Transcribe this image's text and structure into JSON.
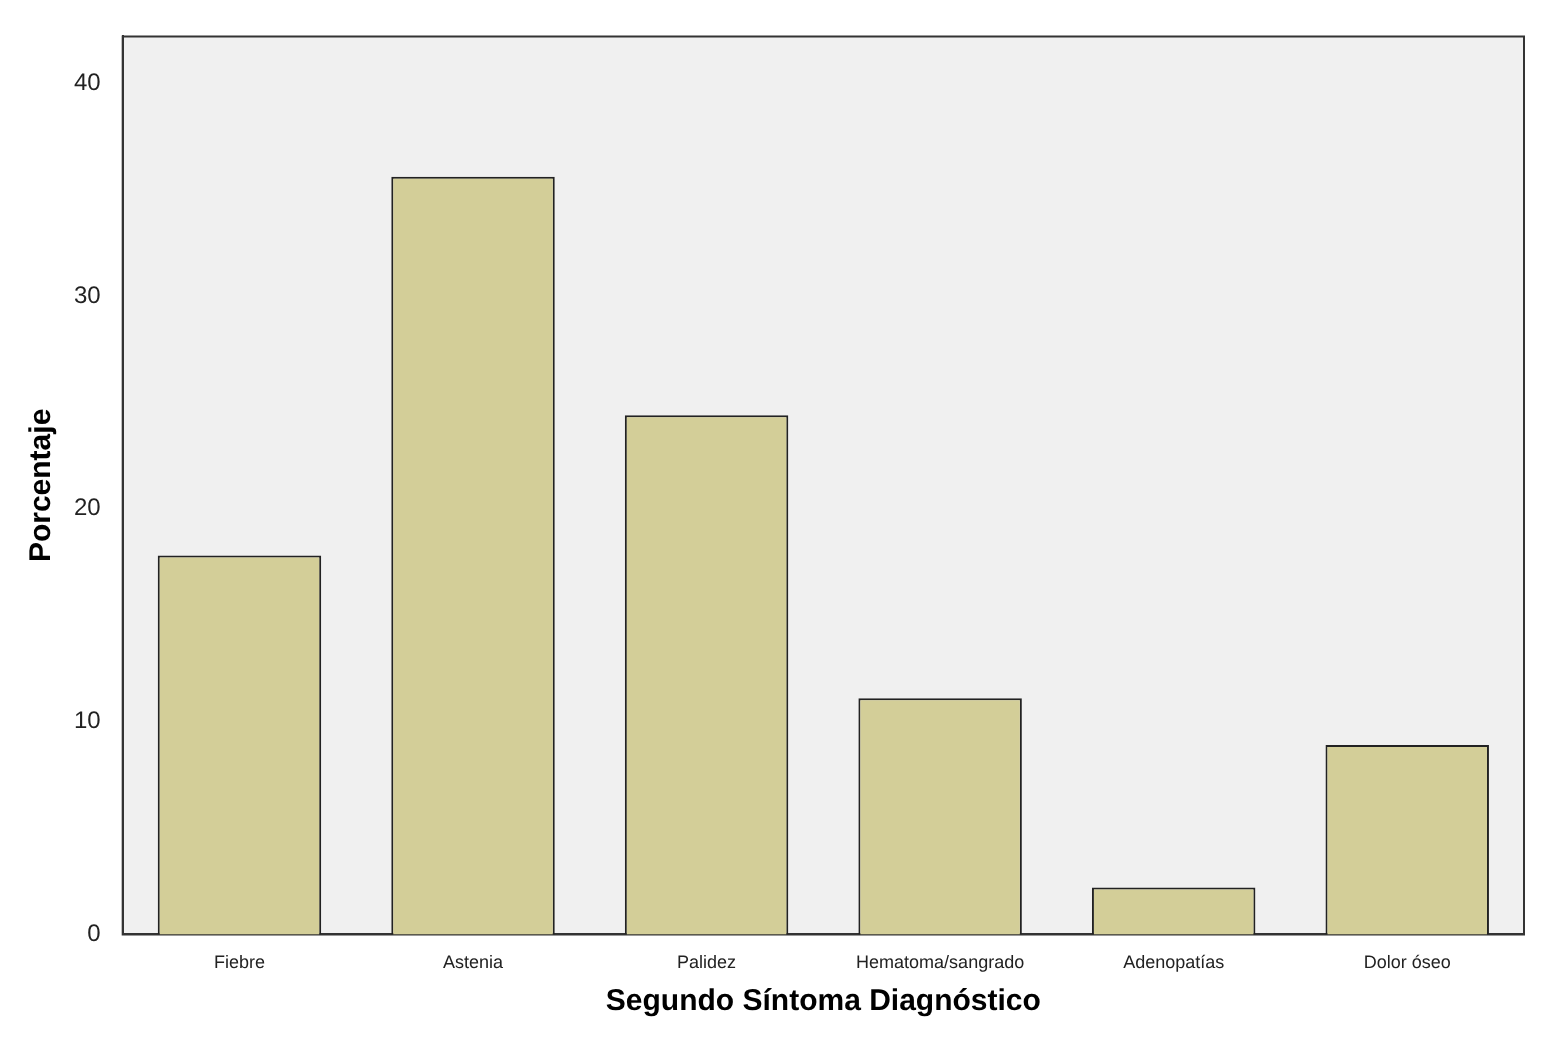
{
  "chart_data": {
    "type": "bar",
    "xlabel": "Segundo Síntoma Diagnóstico",
    "ylabel": "Porcentaje",
    "categories": [
      "Fiebre",
      "Astenia",
      "Palidez",
      "Hematoma/sangrado",
      "Adenopatías",
      "Dolor óseo"
    ],
    "values": [
      17.8,
      35.6,
      24.4,
      11.1,
      2.2,
      8.9
    ],
    "color": "#d3ce98",
    "ylim": [
      0,
      42.2
    ],
    "yticks": [
      0,
      10,
      20,
      30,
      40
    ],
    "grid": false,
    "legend": false
  }
}
